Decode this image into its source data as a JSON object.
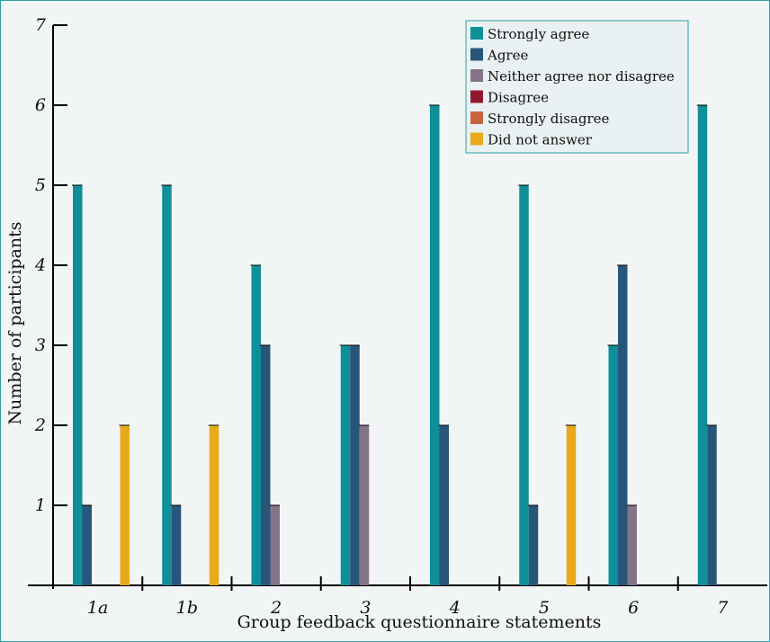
{
  "chart_data": {
    "type": "bar",
    "title": "",
    "xlabel": "Group feedback questionnaire statements",
    "ylabel": "Number of participants",
    "categories": [
      "1a",
      "1b",
      "2",
      "3",
      "4",
      "5",
      "6",
      "7"
    ],
    "ylim": [
      0,
      7
    ],
    "yticks": [
      "1",
      "2",
      "3",
      "4",
      "5",
      "6",
      "7"
    ],
    "grid": false,
    "legend_position": "top-right",
    "series": [
      {
        "name": "Strongly agree",
        "color": "#0f8f99",
        "values": [
          5,
          5,
          4,
          3,
          6,
          5,
          3,
          6
        ]
      },
      {
        "name": "Agree",
        "color": "#28567a",
        "values": [
          1,
          1,
          3,
          3,
          2,
          1,
          4,
          2
        ]
      },
      {
        "name": "Neither agree nor disagree",
        "color": "#85738a",
        "values": [
          0,
          0,
          1,
          2,
          0,
          0,
          1,
          0
        ]
      },
      {
        "name": "Disagree",
        "color": "#8f1a30",
        "values": [
          0,
          0,
          0,
          0,
          0,
          0,
          0,
          0
        ]
      },
      {
        "name": "Strongly disagree",
        "color": "#c8643c",
        "values": [
          0,
          0,
          0,
          0,
          0,
          0,
          0,
          0
        ]
      },
      {
        "name": "Did not answer",
        "color": "#e8aa1a",
        "values": [
          2,
          2,
          0,
          0,
          0,
          2,
          0,
          0
        ]
      }
    ]
  }
}
